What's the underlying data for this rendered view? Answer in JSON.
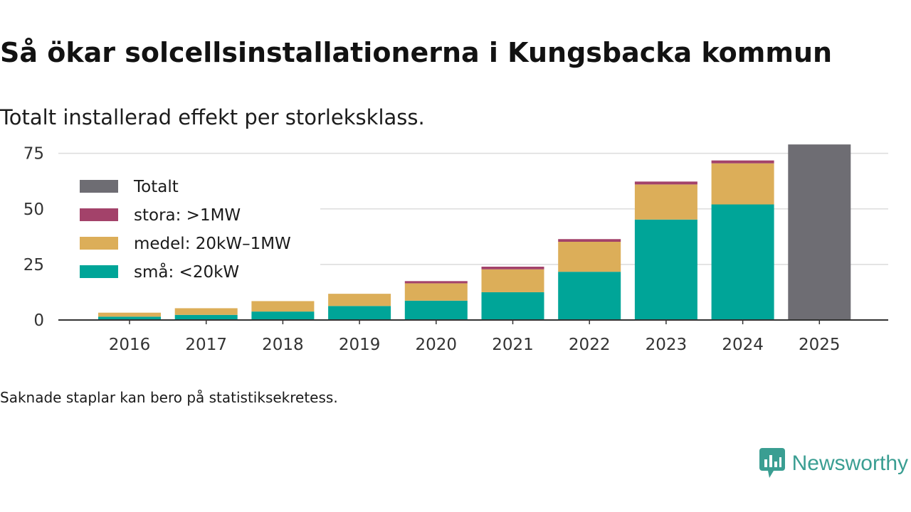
{
  "header": {
    "title": "Så ökar solcellsinstallationerna i Kungsbacka kommun",
    "subtitle": "Totalt installerad effekt per storleksklass."
  },
  "footnote": "Saknade staplar kan bero på statistiksekretess.",
  "brand": {
    "name": "Newsworthy",
    "icon": "newsworthy-logo-icon",
    "color": "#3a9e92"
  },
  "chart_data": {
    "type": "bar",
    "stacked": true,
    "title": "Så ökar solcellsinstallationerna i Kungsbacka kommun",
    "subtitle": "Totalt installerad effekt per storleksklass.",
    "xlabel": "",
    "ylabel": "",
    "ylim": [
      0,
      80
    ],
    "yticks": [
      0,
      25,
      50,
      75
    ],
    "grid": true,
    "legend_position": "top-left",
    "categories": [
      "2016",
      "2017",
      "2018",
      "2019",
      "2020",
      "2021",
      "2022",
      "2023",
      "2024",
      "2025"
    ],
    "series": [
      {
        "name": "små: <20kW",
        "key": "small",
        "color": "#00a598",
        "values": [
          1.5,
          2.3,
          3.8,
          6.3,
          8.7,
          12.5,
          21.7,
          45.2,
          52.0,
          null
        ]
      },
      {
        "name": "medel: 20kW–1MW",
        "key": "medium",
        "color": "#dcae59",
        "values": [
          1.8,
          3.0,
          4.7,
          5.5,
          7.8,
          10.3,
          13.5,
          15.8,
          18.5,
          null
        ]
      },
      {
        "name": "stora: >1MW",
        "key": "large",
        "color": "#a3426a",
        "values": [
          0,
          0,
          0,
          0,
          1.0,
          1.2,
          1.2,
          1.3,
          1.3,
          null
        ]
      },
      {
        "name": "Totalt",
        "key": "total",
        "color": "#6e6d73",
        "values": [
          null,
          null,
          null,
          null,
          null,
          null,
          null,
          null,
          null,
          79.0
        ]
      }
    ]
  }
}
